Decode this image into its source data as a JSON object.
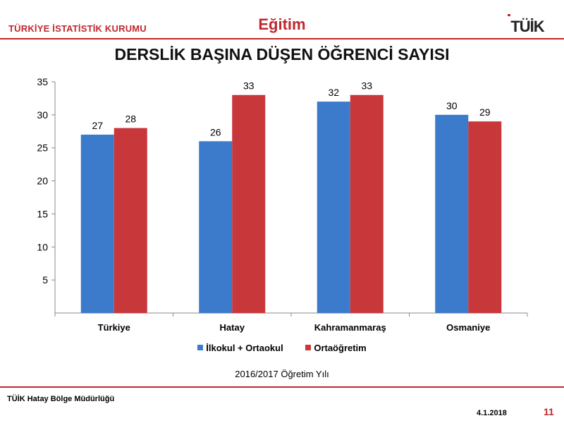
{
  "header": {
    "org": "TÜRKİYE İSTATİSTİK KURUMU",
    "section": "Eğitim",
    "logo_text": "TÜİK"
  },
  "chart_data": {
    "type": "bar",
    "title": "DERSLİK BAŞINA DÜŞEN ÖĞRENCİ SAYISI",
    "subtitle": "2016/2017 Öğretim Yılı",
    "categories": [
      "Türkiye",
      "Hatay",
      "Kahramanmaraş",
      "Osmaniye"
    ],
    "series": [
      {
        "name": "İlkokul + Ortaokul",
        "values": [
          27,
          26,
          32,
          30
        ],
        "color": "#3c7bcb"
      },
      {
        "name": "Ortaöğretim",
        "values": [
          28,
          33,
          33,
          29
        ],
        "color": "#c8373a"
      }
    ],
    "ylim": [
      0,
      35
    ],
    "yticks": [
      5,
      10,
      15,
      20,
      25,
      30,
      35
    ],
    "grid": false,
    "legend": "bottom"
  },
  "footer": {
    "left": "TÜİK Hatay Bölge Müdürlüğü",
    "date": "4.1.2018",
    "page": "11"
  }
}
